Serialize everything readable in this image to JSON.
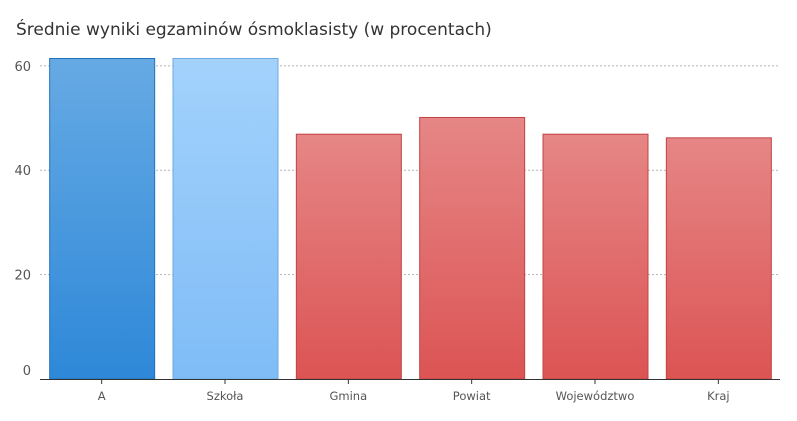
{
  "chart_data": {
    "type": "bar",
    "title": "Średnie wyniki egzaminów ósmoklasisty (w procentach)",
    "xlabel": "",
    "ylabel": "",
    "categories": [
      "A",
      "Szkoła",
      "Gmina",
      "Powiat",
      "Województwo",
      "Kraj"
    ],
    "values": [
      61.5,
      61.5,
      47,
      50.2,
      47,
      46.3
    ],
    "ylim": [
      0,
      61.5
    ],
    "yticks": [
      0,
      20,
      40,
      60
    ],
    "grid": true,
    "legend": "none",
    "bar_colors": [
      {
        "top": "#66aae4",
        "bottom": "#2e88d8",
        "stroke": "#2272be"
      },
      {
        "top": "#a3d2fc",
        "bottom": "#7fbcf6",
        "stroke": "#6ca9e2"
      },
      {
        "top": "#e68686",
        "bottom": "#dc5454",
        "stroke": "#c24444"
      },
      {
        "top": "#e68686",
        "bottom": "#dc5454",
        "stroke": "#c24444"
      },
      {
        "top": "#e68686",
        "bottom": "#dc5454",
        "stroke": "#c24444"
      },
      {
        "top": "#e68686",
        "bottom": "#dc5454",
        "stroke": "#c24444"
      }
    ],
    "grid_color": "#b5b5b5",
    "axis_color": "#333333"
  }
}
